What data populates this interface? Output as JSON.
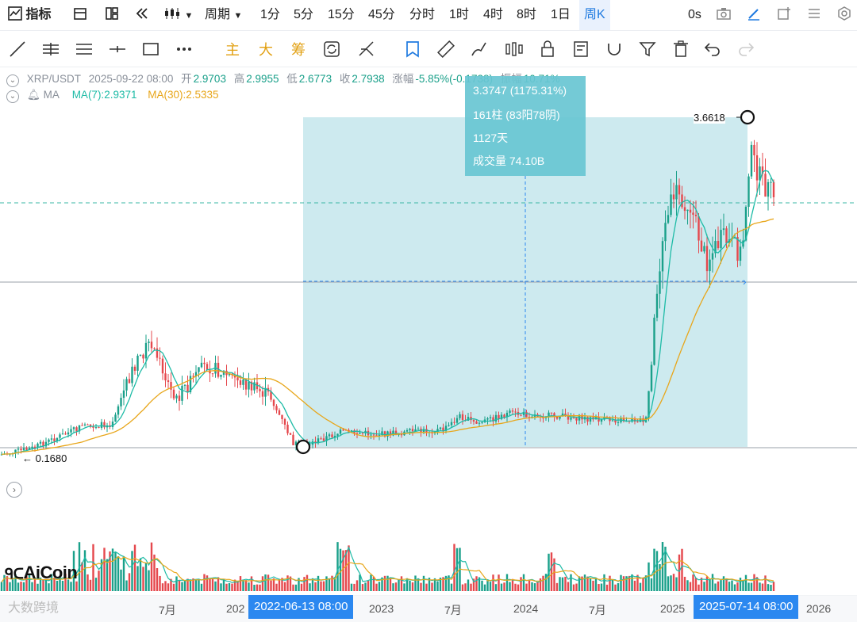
{
  "toolbar": {
    "indicators_label": "指标",
    "period_label": "周期",
    "periods": [
      "1分",
      "5分",
      "15分",
      "45分",
      "分时",
      "1时",
      "4时",
      "8时",
      "1日",
      "周K"
    ],
    "active_period": "周K",
    "countdown": "0s"
  },
  "drawbar": {
    "main_label": "主",
    "big_label": "大",
    "chips_label": "筹"
  },
  "info": {
    "symbol": "XRP/USDT",
    "datetime": "2025-09-22 08:00",
    "open_label": "开",
    "open": "2.9703",
    "high_label": "高",
    "high": "2.9955",
    "low_label": "低",
    "low": "2.6773",
    "close_label": "收",
    "close": "2.7938",
    "change_label": "涨幅",
    "change": "-5.85%(-0.1738)",
    "amp_label": "振幅",
    "amp": "10.71%"
  },
  "ma": {
    "label": "MA",
    "ma7": "MA(7):2.9371",
    "ma30": "MA(30):2.5335"
  },
  "tooltip": {
    "line1": "3.3747 (1175.31%)",
    "line2": "161柱 (83阳78阴)",
    "line3": "1127天",
    "line4": "成交量 74.10B"
  },
  "price_tags": {
    "high": "3.6618",
    "low": "← 0.1680"
  },
  "xaxis": {
    "labels": [
      "7月",
      "202",
      "2023",
      "7月",
      "2024",
      "7月",
      "2025",
      "2026"
    ],
    "start_pill": "2022-06-13 08:00",
    "end_pill": "2025-07-14 08:00"
  },
  "logo": "AiCoin",
  "watermark": "大数跨境",
  "colors": {
    "up": "#1aa08a",
    "down": "#e5484d",
    "ma7": "#1dbba6",
    "ma30": "#e8a61a",
    "accent": "#2b88f0",
    "range": "#cdeaef"
  }
}
